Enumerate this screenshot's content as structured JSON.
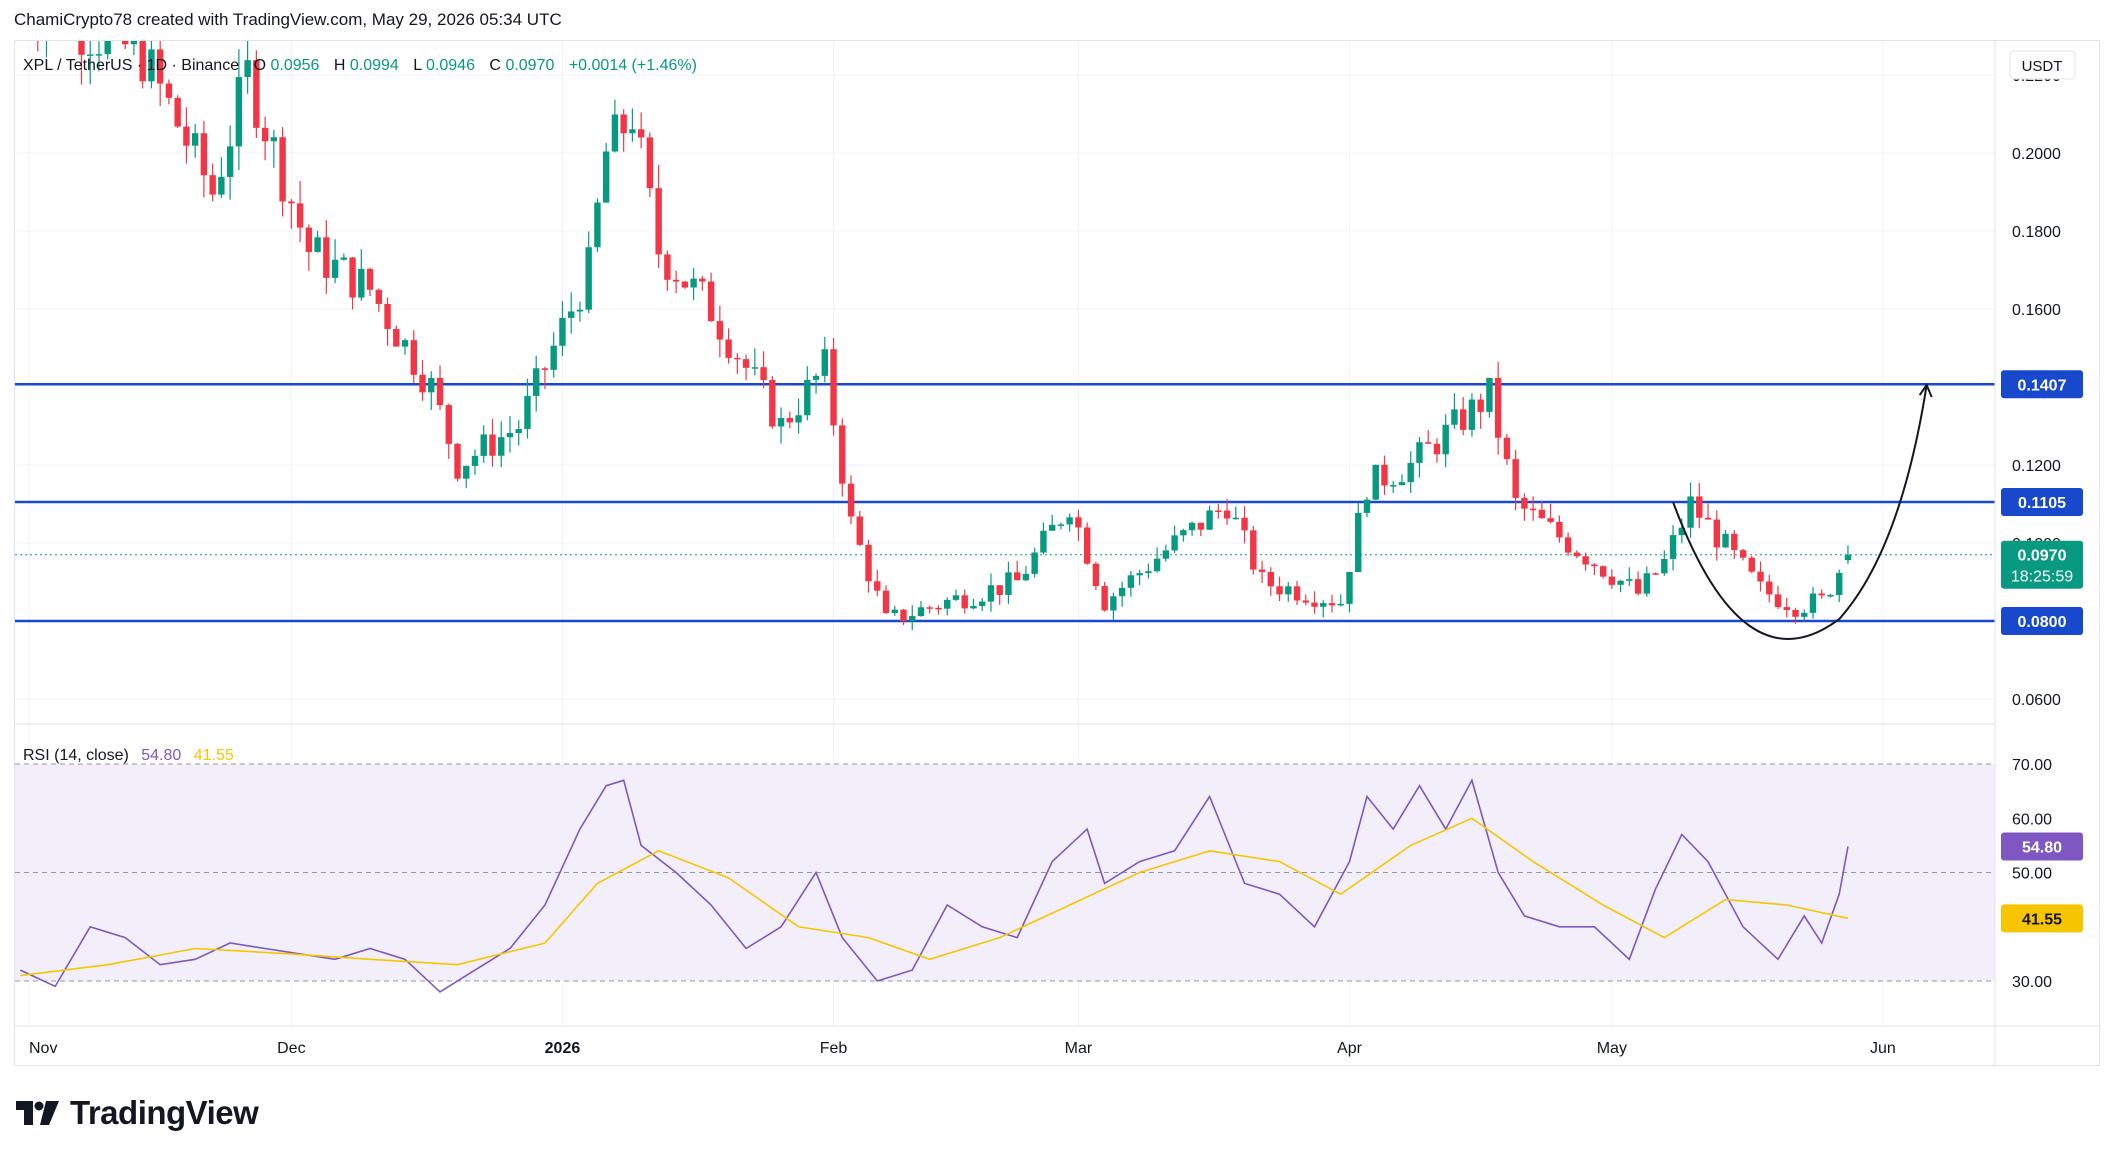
{
  "header": {
    "attribution": "ChamiCrypto78 created with TradingView.com, May 29, 2026 05:34 UTC"
  },
  "legend": {
    "symbol": "XPL / TetherUS · 1D · Binance",
    "o_label": "O",
    "o_value": "0.0956",
    "h_label": "H",
    "h_value": "0.0994",
    "l_label": "L",
    "l_value": "0.0946",
    "c_label": "C",
    "c_value": "0.0970",
    "change": "+0.0014 (+1.46%)"
  },
  "currency": "USDT",
  "rsi_legend": {
    "label": "RSI (14, close)",
    "rsi": "54.80",
    "ma": "41.55"
  },
  "brand": "TradingView",
  "colors": {
    "up": "#089981",
    "down": "#f23645",
    "level": "#1848cc",
    "rsi": "#7e57c2",
    "rsi_ma": "#f7c500",
    "rsi_bg": "#f3effa"
  },
  "chart_data": [
    {
      "type": "candlestick",
      "title": "XPL / TetherUS · 1D · Binance",
      "ylabel": "USDT",
      "ylim": [
        0.052,
        0.232
      ],
      "y_ticks": [
        0.22,
        0.2,
        0.18,
        0.16,
        0.12,
        0.1,
        0.06
      ],
      "y_tick_labels": [
        "0.2200",
        "0.2000",
        "0.1800",
        "0.1600",
        "0.1200",
        "0.1000",
        "0.0600"
      ],
      "x_tick_labels": [
        "Nov",
        "Dec",
        "2026",
        "Feb",
        "Mar",
        "Apr",
        "May",
        "Jun"
      ],
      "grid": true,
      "horizontal_levels": [
        {
          "value": 0.1407,
          "label": "0.1407"
        },
        {
          "value": 0.1105,
          "label": "0.1105"
        },
        {
          "value": 0.08,
          "label": "0.0800"
        }
      ],
      "last_price": {
        "value": 0.097,
        "label": "0.0970",
        "countdown": "18:25:59"
      },
      "annotations": [
        "rounded-bottom curve",
        "upward arrow to 0.1407"
      ],
      "close_path": [
        [
          "2025-10-31",
          0.24
        ],
        [
          "2025-11-14",
          0.225
        ],
        [
          "2025-11-22",
          0.19
        ],
        [
          "2025-11-26",
          0.22
        ],
        [
          "2025-12-03",
          0.175
        ],
        [
          "2025-12-10",
          0.165
        ],
        [
          "2025-12-17",
          0.14
        ],
        [
          "2025-12-20",
          0.12
        ],
        [
          "2025-12-27",
          0.13
        ],
        [
          "2026-01-01",
          0.155
        ],
        [
          "2026-01-04",
          0.17
        ],
        [
          "2026-01-06",
          0.2
        ],
        [
          "2026-01-09",
          0.21
        ],
        [
          "2026-01-12",
          0.175
        ],
        [
          "2026-01-18",
          0.16
        ],
        [
          "2026-01-22",
          0.145
        ],
        [
          "2026-01-26",
          0.13
        ],
        [
          "2026-01-31",
          0.145
        ],
        [
          "2026-02-03",
          0.105
        ],
        [
          "2026-02-07",
          0.08
        ],
        [
          "2026-02-14",
          0.085
        ],
        [
          "2026-02-22",
          0.09
        ],
        [
          "2026-02-28",
          0.11
        ],
        [
          "2026-03-04",
          0.085
        ],
        [
          "2026-03-12",
          0.1
        ],
        [
          "2026-03-18",
          0.11
        ],
        [
          "2026-03-22",
          0.09
        ],
        [
          "2026-03-31",
          0.085
        ],
        [
          "2026-04-03",
          0.115
        ],
        [
          "2026-04-08",
          0.12
        ],
        [
          "2026-04-13",
          0.13
        ],
        [
          "2026-04-17",
          0.138
        ],
        [
          "2026-04-20",
          0.11
        ],
        [
          "2026-04-26",
          0.1
        ],
        [
          "2026-05-04",
          0.087
        ],
        [
          "2026-05-07",
          0.095
        ],
        [
          "2026-05-10",
          0.11
        ],
        [
          "2026-05-18",
          0.088
        ],
        [
          "2026-05-22",
          0.084
        ],
        [
          "2026-05-25",
          0.085
        ],
        [
          "2026-05-28",
          0.097
        ]
      ]
    },
    {
      "type": "line",
      "title": "RSI (14, close)",
      "ylim": [
        24,
        76
      ],
      "y_ticks": [
        70,
        60,
        50,
        30
      ],
      "y_tick_labels": [
        "70.00",
        "60.00",
        "50.00",
        "30.00"
      ],
      "bands": [
        30,
        50,
        70
      ],
      "series": [
        {
          "name": "RSI",
          "last": 54.8,
          "label": "54.80",
          "points": [
            [
              "2025-10-31",
              32
            ],
            [
              "2025-11-04",
              29
            ],
            [
              "2025-11-08",
              40
            ],
            [
              "2025-11-12",
              38
            ],
            [
              "2025-11-16",
              33
            ],
            [
              "2025-11-20",
              34
            ],
            [
              "2025-11-24",
              37
            ],
            [
              "2025-11-28",
              36
            ],
            [
              "2025-12-02",
              35
            ],
            [
              "2025-12-06",
              34
            ],
            [
              "2025-12-10",
              36
            ],
            [
              "2025-12-14",
              34
            ],
            [
              "2025-12-18",
              28
            ],
            [
              "2025-12-22",
              32
            ],
            [
              "2025-12-26",
              36
            ],
            [
              "2025-12-30",
              44
            ],
            [
              "2026-01-03",
              58
            ],
            [
              "2026-01-06",
              66
            ],
            [
              "2026-01-08",
              67
            ],
            [
              "2026-01-10",
              55
            ],
            [
              "2026-01-14",
              50
            ],
            [
              "2026-01-18",
              44
            ],
            [
              "2026-01-22",
              36
            ],
            [
              "2026-01-26",
              40
            ],
            [
              "2026-01-30",
              50
            ],
            [
              "2026-02-02",
              38
            ],
            [
              "2026-02-06",
              30
            ],
            [
              "2026-02-10",
              32
            ],
            [
              "2026-02-14",
              44
            ],
            [
              "2026-02-18",
              40
            ],
            [
              "2026-02-22",
              38
            ],
            [
              "2026-02-26",
              52
            ],
            [
              "2026-03-02",
              58
            ],
            [
              "2026-03-04",
              48
            ],
            [
              "2026-03-08",
              52
            ],
            [
              "2026-03-12",
              54
            ],
            [
              "2026-03-16",
              64
            ],
            [
              "2026-03-20",
              48
            ],
            [
              "2026-03-24",
              46
            ],
            [
              "2026-03-28",
              40
            ],
            [
              "2026-04-01",
              52
            ],
            [
              "2026-04-03",
              64
            ],
            [
              "2026-04-06",
              58
            ],
            [
              "2026-04-09",
              66
            ],
            [
              "2026-04-12",
              58
            ],
            [
              "2026-04-15",
              67
            ],
            [
              "2026-04-18",
              50
            ],
            [
              "2026-04-21",
              42
            ],
            [
              "2026-04-25",
              40
            ],
            [
              "2026-04-29",
              40
            ],
            [
              "2026-05-03",
              34
            ],
            [
              "2026-05-06",
              47
            ],
            [
              "2026-05-09",
              57
            ],
            [
              "2026-05-12",
              52
            ],
            [
              "2026-05-16",
              40
            ],
            [
              "2026-05-20",
              34
            ],
            [
              "2026-05-23",
              42
            ],
            [
              "2026-05-25",
              37
            ],
            [
              "2026-05-27",
              46
            ],
            [
              "2026-05-28",
              54.8
            ]
          ]
        },
        {
          "name": "RSI-based MA",
          "last": 41.55,
          "label": "41.55",
          "points": [
            [
              "2025-10-31",
              31
            ],
            [
              "2025-11-10",
              33
            ],
            [
              "2025-11-20",
              36
            ],
            [
              "2025-12-01",
              35
            ],
            [
              "2025-12-10",
              34
            ],
            [
              "2025-12-20",
              33
            ],
            [
              "2025-12-30",
              37
            ],
            [
              "2026-01-05",
              48
            ],
            [
              "2026-01-12",
              54
            ],
            [
              "2026-01-20",
              49
            ],
            [
              "2026-01-28",
              40
            ],
            [
              "2026-02-05",
              38
            ],
            [
              "2026-02-12",
              34
            ],
            [
              "2026-02-20",
              38
            ],
            [
              "2026-02-28",
              44
            ],
            [
              "2026-03-08",
              50
            ],
            [
              "2026-03-16",
              54
            ],
            [
              "2026-03-24",
              52
            ],
            [
              "2026-03-31",
              46
            ],
            [
              "2026-04-08",
              55
            ],
            [
              "2026-04-15",
              60
            ],
            [
              "2026-04-22",
              52
            ],
            [
              "2026-04-30",
              44
            ],
            [
              "2026-05-07",
              38
            ],
            [
              "2026-05-14",
              45
            ],
            [
              "2026-05-21",
              44
            ],
            [
              "2026-05-28",
              41.55
            ]
          ]
        }
      ]
    }
  ]
}
